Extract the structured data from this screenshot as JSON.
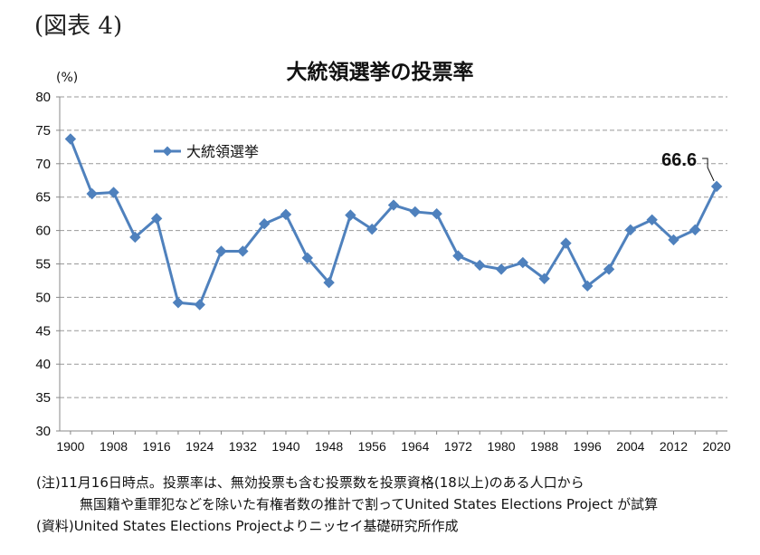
{
  "header": {
    "figure_label": "(図表 4)"
  },
  "chart_data": {
    "type": "line",
    "title": "大統領選挙の投票率",
    "ylabel": "(%)",
    "ylim": [
      30,
      80
    ],
    "yticks": [
      30,
      35,
      40,
      45,
      50,
      55,
      60,
      65,
      70,
      75,
      80
    ],
    "xlim": [
      1898,
      2022
    ],
    "xticks": [
      1900,
      1908,
      1916,
      1924,
      1932,
      1940,
      1948,
      1956,
      1964,
      1972,
      1980,
      1988,
      1996,
      2004,
      2012,
      2020
    ],
    "grid": "horizontal dashed",
    "legend": "upper-left",
    "series": [
      {
        "name": "大統領選挙",
        "color": "#4f81bd",
        "marker": "diamond",
        "x": [
          1900,
          1904,
          1908,
          1912,
          1916,
          1920,
          1924,
          1928,
          1932,
          1936,
          1940,
          1944,
          1948,
          1952,
          1956,
          1960,
          1964,
          1968,
          1972,
          1976,
          1980,
          1984,
          1988,
          1992,
          1996,
          2000,
          2004,
          2008,
          2012,
          2016,
          2020
        ],
        "values": [
          73.7,
          65.5,
          65.7,
          59.0,
          61.8,
          49.2,
          48.9,
          56.9,
          56.9,
          61.0,
          62.4,
          55.9,
          52.2,
          62.3,
          60.2,
          63.8,
          62.8,
          62.5,
          56.2,
          54.8,
          54.2,
          55.2,
          52.8,
          58.1,
          51.7,
          54.2,
          60.1,
          61.6,
          58.6,
          60.1,
          66.6
        ]
      }
    ],
    "annotations": [
      {
        "text": "66.6",
        "x": 2020,
        "y": 66.6
      }
    ]
  },
  "notes": {
    "line1": "(注)11月16日時点。投票率は、無効投票も含む投票数を投票資格(18以上)のある人口から",
    "line2": "無国籍や重罪犯などを除いた有権者数の推計で割ってUnited States Elections Project が試算",
    "line3": "(資料)United States Elections Projectよりニッセイ基礎研究所作成"
  }
}
